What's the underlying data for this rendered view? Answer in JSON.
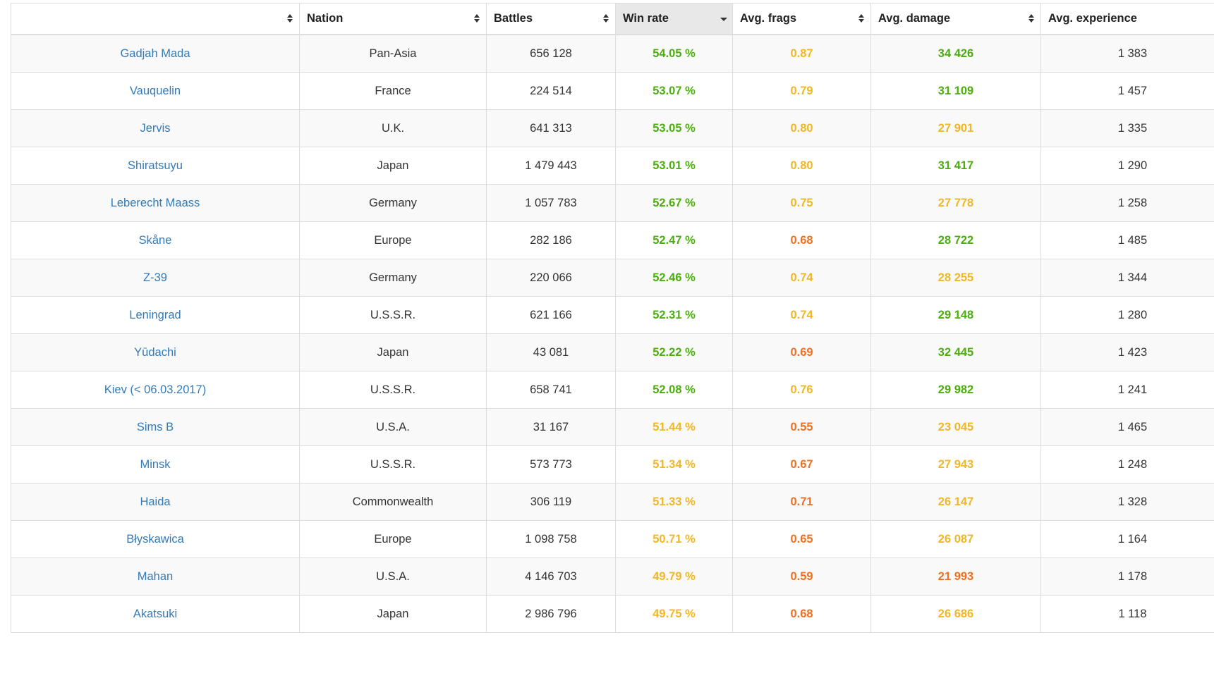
{
  "columns": [
    {
      "label": "",
      "sort": "both"
    },
    {
      "label": "Nation",
      "sort": "both"
    },
    {
      "label": "Battles",
      "sort": "both"
    },
    {
      "label": "Win rate",
      "sort": "desc"
    },
    {
      "label": "Avg. frags",
      "sort": "both"
    },
    {
      "label": "Avg. damage",
      "sort": "both"
    },
    {
      "label": "Avg. experience",
      "sort": "both"
    }
  ],
  "colors": {
    "green": "#4cae0e",
    "yellow": "#f0b726",
    "orange": "#f07022",
    "link": "#337ab7",
    "sorted_header_bg": "#e8e8e8"
  },
  "rows": [
    {
      "ship": "Gadjah Mada",
      "nation": "Pan-Asia",
      "battles": "656 128",
      "winrate": "54.05 %",
      "winrate_color": "green",
      "frags": "0.87",
      "frags_color": "yellow",
      "damage": "34 426",
      "damage_color": "green",
      "exp": "1 383"
    },
    {
      "ship": "Vauquelin",
      "nation": "France",
      "battles": "224 514",
      "winrate": "53.07 %",
      "winrate_color": "green",
      "frags": "0.79",
      "frags_color": "yellow",
      "damage": "31 109",
      "damage_color": "green",
      "exp": "1 457"
    },
    {
      "ship": "Jervis",
      "nation": "U.K.",
      "battles": "641 313",
      "winrate": "53.05 %",
      "winrate_color": "green",
      "frags": "0.80",
      "frags_color": "yellow",
      "damage": "27 901",
      "damage_color": "yellow",
      "exp": "1 335"
    },
    {
      "ship": "Shiratsuyu",
      "nation": "Japan",
      "battles": "1 479 443",
      "winrate": "53.01 %",
      "winrate_color": "green",
      "frags": "0.80",
      "frags_color": "yellow",
      "damage": "31 417",
      "damage_color": "green",
      "exp": "1 290"
    },
    {
      "ship": "Leberecht Maass",
      "nation": "Germany",
      "battles": "1 057 783",
      "winrate": "52.67 %",
      "winrate_color": "green",
      "frags": "0.75",
      "frags_color": "yellow",
      "damage": "27 778",
      "damage_color": "yellow",
      "exp": "1 258"
    },
    {
      "ship": "Skåne",
      "nation": "Europe",
      "battles": "282 186",
      "winrate": "52.47 %",
      "winrate_color": "green",
      "frags": "0.68",
      "frags_color": "orange",
      "damage": "28 722",
      "damage_color": "green",
      "exp": "1 485"
    },
    {
      "ship": "Z-39",
      "nation": "Germany",
      "battles": "220 066",
      "winrate": "52.46 %",
      "winrate_color": "green",
      "frags": "0.74",
      "frags_color": "yellow",
      "damage": "28 255",
      "damage_color": "yellow",
      "exp": "1 344"
    },
    {
      "ship": "Leningrad",
      "nation": "U.S.S.R.",
      "battles": "621 166",
      "winrate": "52.31 %",
      "winrate_color": "green",
      "frags": "0.74",
      "frags_color": "yellow",
      "damage": "29 148",
      "damage_color": "green",
      "exp": "1 280"
    },
    {
      "ship": "Yūdachi",
      "nation": "Japan",
      "battles": "43 081",
      "winrate": "52.22 %",
      "winrate_color": "green",
      "frags": "0.69",
      "frags_color": "orange",
      "damage": "32 445",
      "damage_color": "green",
      "exp": "1 423"
    },
    {
      "ship": "Kiev (< 06.03.2017)",
      "nation": "U.S.S.R.",
      "battles": "658 741",
      "winrate": "52.08 %",
      "winrate_color": "green",
      "frags": "0.76",
      "frags_color": "yellow",
      "damage": "29 982",
      "damage_color": "green",
      "exp": "1 241"
    },
    {
      "ship": "Sims B",
      "nation": "U.S.A.",
      "battles": "31 167",
      "winrate": "51.44 %",
      "winrate_color": "yellow",
      "frags": "0.55",
      "frags_color": "orange",
      "damage": "23 045",
      "damage_color": "yellow",
      "exp": "1 465"
    },
    {
      "ship": "Minsk",
      "nation": "U.S.S.R.",
      "battles": "573 773",
      "winrate": "51.34 %",
      "winrate_color": "yellow",
      "frags": "0.67",
      "frags_color": "orange",
      "damage": "27 943",
      "damage_color": "yellow",
      "exp": "1 248"
    },
    {
      "ship": "Haida",
      "nation": "Commonwealth",
      "battles": "306 119",
      "winrate": "51.33 %",
      "winrate_color": "yellow",
      "frags": "0.71",
      "frags_color": "orange",
      "damage": "26 147",
      "damage_color": "yellow",
      "exp": "1 328"
    },
    {
      "ship": "Błyskawica",
      "nation": "Europe",
      "battles": "1 098 758",
      "winrate": "50.71 %",
      "winrate_color": "yellow",
      "frags": "0.65",
      "frags_color": "orange",
      "damage": "26 087",
      "damage_color": "yellow",
      "exp": "1 164"
    },
    {
      "ship": "Mahan",
      "nation": "U.S.A.",
      "battles": "4 146 703",
      "winrate": "49.79 %",
      "winrate_color": "yellow",
      "frags": "0.59",
      "frags_color": "orange",
      "damage": "21 993",
      "damage_color": "orange",
      "exp": "1 178"
    },
    {
      "ship": "Akatsuki",
      "nation": "Japan",
      "battles": "2 986 796",
      "winrate": "49.75 %",
      "winrate_color": "yellow",
      "frags": "0.68",
      "frags_color": "orange",
      "damage": "26 686",
      "damage_color": "yellow",
      "exp": "1 118"
    }
  ]
}
